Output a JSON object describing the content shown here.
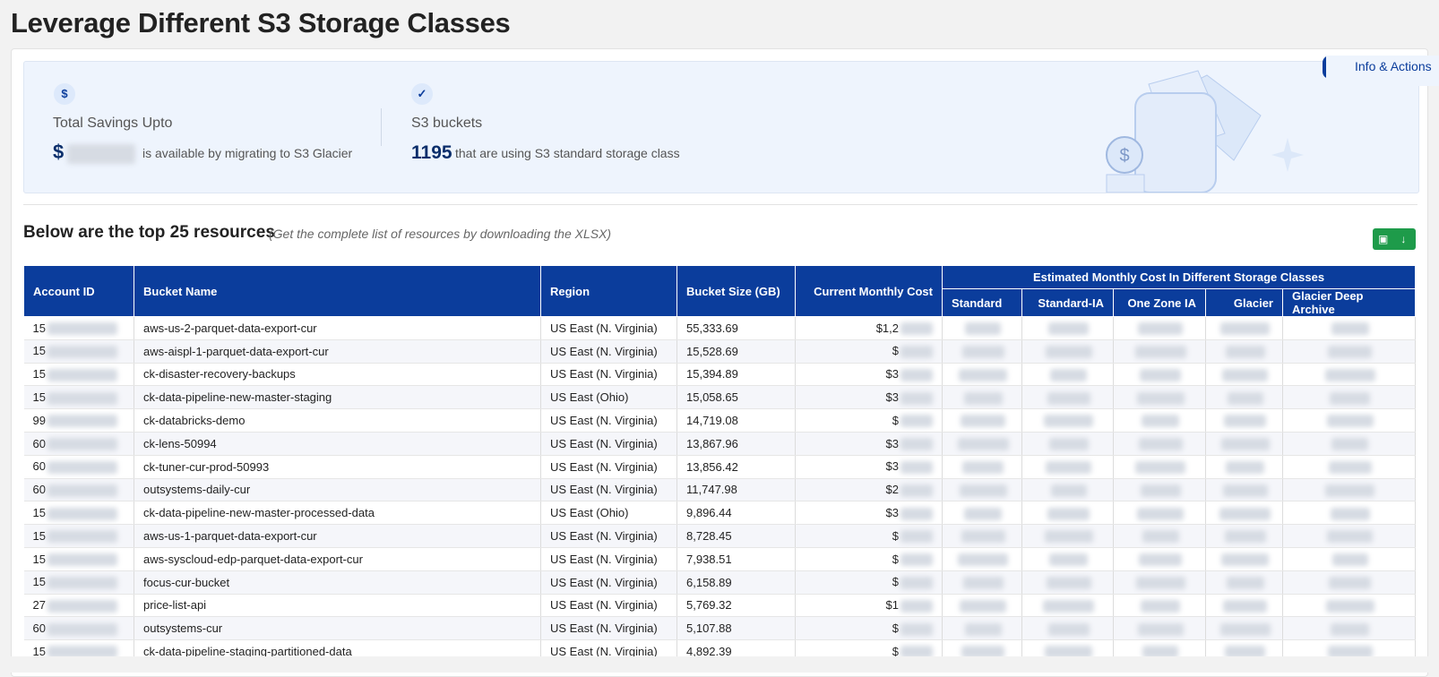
{
  "header": {
    "title": "Leverage Different S3 Storage Classes"
  },
  "side_tab": "Info & Actions",
  "summary": {
    "savings": {
      "label": "Total Savings Upto",
      "currency": "$",
      "note": "is available by migrating to S3 Glacier"
    },
    "buckets": {
      "label": "S3 buckets",
      "count": "1195",
      "note": "that are using S3 standard storage class"
    }
  },
  "resources": {
    "heading": "Below are the top 25 resources",
    "subheading": "(Get the complete list of resources by downloading the XLSX)"
  },
  "table": {
    "columns": [
      "Account ID",
      "Bucket Name",
      "Region",
      "Bucket Size (GB)",
      "Current Monthly Cost"
    ],
    "group_header": "Estimated Monthly Cost In Different Storage Classes",
    "sub_columns": [
      "Standard",
      "Standard-IA",
      "One Zone IA",
      "Glacier",
      "Glacier Deep Archive"
    ],
    "rows": [
      [
        "15",
        "aws-us-2-parquet-data-export-cur",
        "US East (N. Virginia)",
        "55,333.69",
        "$1,2"
      ],
      [
        "15",
        "aws-aispl-1-parquet-data-export-cur",
        "US East (N. Virginia)",
        "15,528.69",
        "$"
      ],
      [
        "15",
        "ck-disaster-recovery-backups",
        "US East (N. Virginia)",
        "15,394.89",
        "$3"
      ],
      [
        "15",
        "ck-data-pipeline-new-master-staging",
        "US East (Ohio)",
        "15,058.65",
        "$3"
      ],
      [
        "99",
        "ck-databricks-demo",
        "US East (N. Virginia)",
        "14,719.08",
        "$"
      ],
      [
        "60",
        "ck-lens-50994",
        "US East (N. Virginia)",
        "13,867.96",
        "$3"
      ],
      [
        "60",
        "ck-tuner-cur-prod-50993",
        "US East (N. Virginia)",
        "13,856.42",
        "$3"
      ],
      [
        "60",
        "outsystems-daily-cur",
        "US East (N. Virginia)",
        "11,747.98",
        "$2"
      ],
      [
        "15",
        "ck-data-pipeline-new-master-processed-data",
        "US East (Ohio)",
        "9,896.44",
        "$3"
      ],
      [
        "15",
        "aws-us-1-parquet-data-export-cur",
        "US East (N. Virginia)",
        "8,728.45",
        "$"
      ],
      [
        "15",
        "aws-syscloud-edp-parquet-data-export-cur",
        "US East (N. Virginia)",
        "7,938.51",
        "$"
      ],
      [
        "15",
        "focus-cur-bucket",
        "US East (N. Virginia)",
        "6,158.89",
        "$"
      ],
      [
        "27",
        "price-list-api",
        "US East (N. Virginia)",
        "5,769.32",
        "$1"
      ],
      [
        "60",
        "outsystems-cur",
        "US East (N. Virginia)",
        "5,107.88",
        "$"
      ],
      [
        "15",
        "ck-data-pipeline-staging-partitioned-data",
        "US East (N. Virginia)",
        "4,892.39",
        "$"
      ]
    ]
  }
}
